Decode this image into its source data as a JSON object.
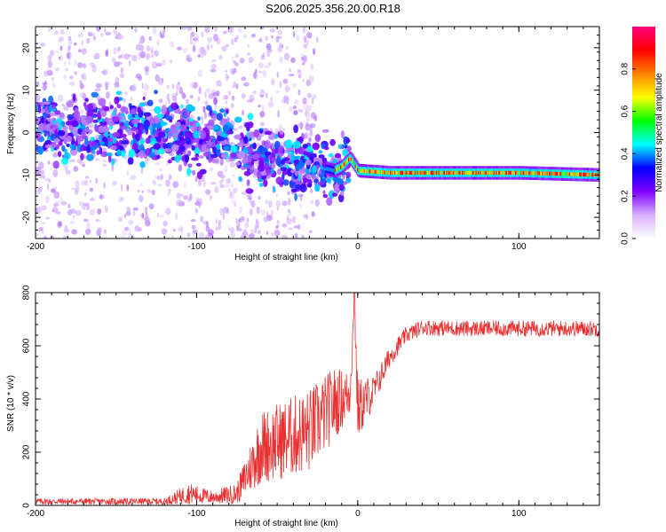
{
  "title": "S206.2025.356.20.00.R18",
  "chart_data": [
    {
      "type": "heatmap",
      "title": "S206.2025.356.20.00.R18",
      "xlabel": "Height of straight line (km)",
      "ylabel": "Frequency (Hz)",
      "xlim": [
        -200,
        150
      ],
      "ylim": [
        -25,
        25
      ],
      "xticks": [
        -200,
        -100,
        0,
        100
      ],
      "yticks": [
        -20,
        -10,
        0,
        10,
        20
      ],
      "ridge": {
        "description_points_x": [
          -200,
          -150,
          -120,
          -100,
          -80,
          -60,
          -40,
          -25,
          -15,
          -10,
          -5,
          0,
          20,
          50,
          100,
          150
        ],
        "center_y": [
          1,
          1,
          0,
          -1,
          -1,
          -6,
          -7,
          -8,
          -9,
          -8,
          -6,
          -9,
          -9.5,
          -9.5,
          -9.5,
          -10
        ]
      },
      "colorbar": {
        "label": "Normalized spectral amplitude",
        "range": [
          0,
          1
        ],
        "ticks": [
          "0.0",
          "0.2",
          "0.4",
          "0.6",
          "0.8"
        ],
        "colors": [
          "#ffffff",
          "#d8b0ff",
          "#8000ff",
          "#0000ff",
          "#00ffff",
          "#00ff00",
          "#ffff00",
          "#ff8000",
          "#ff0000",
          "#ff0080"
        ]
      }
    },
    {
      "type": "line",
      "xlabel": "Height of straight line (km)",
      "ylabel": "SNR (10 * v/v)",
      "xlim": [
        -200,
        150
      ],
      "ylim": [
        0,
        800
      ],
      "xticks": [
        -200,
        -100,
        0,
        100
      ],
      "yticks": [
        0,
        200,
        400,
        600,
        800
      ],
      "color": "#e83030",
      "envelope": {
        "x": [
          -200,
          -120,
          -105,
          -90,
          -75,
          -60,
          -45,
          -30,
          -15,
          -5,
          -2,
          0,
          10,
          20,
          30,
          40,
          60,
          100,
          150
        ],
        "mean": [
          15,
          15,
          45,
          30,
          45,
          220,
          250,
          280,
          380,
          420,
          750,
          360,
          430,
          560,
          640,
          670,
          665,
          665,
          665
        ],
        "amp": [
          12,
          12,
          40,
          25,
          40,
          140,
          150,
          160,
          140,
          90,
          50,
          120,
          60,
          40,
          30,
          30,
          30,
          30,
          30
        ]
      }
    }
  ]
}
